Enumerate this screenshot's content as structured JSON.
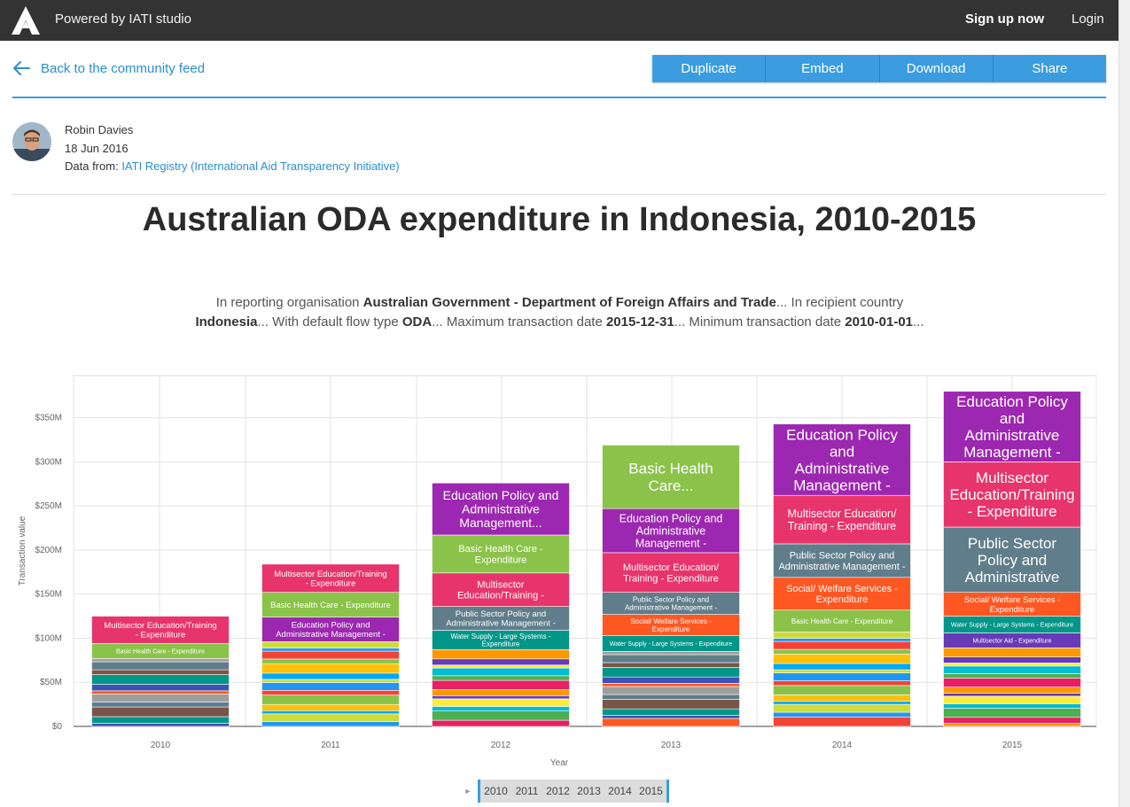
{
  "topbar": {
    "logo_icon": "atlas-a-logo-icon",
    "powered_by": "Powered by IATI studio",
    "signup": "Sign up now",
    "login": "Login"
  },
  "toolbar": {
    "back_label": "Back to the community feed",
    "duplicate": "Duplicate",
    "embed": "Embed",
    "download": "Download",
    "share": "Share",
    "accent": "#3b9de0"
  },
  "author": {
    "name": "Robin Davies",
    "date": "18 Jun 2016",
    "data_from_label": "Data from:",
    "data_source": "IATI Registry (International Aid Transparency Initiative)"
  },
  "title": "Australian ODA expenditure in Indonesia, 2010-2015",
  "description": {
    "p1": "In reporting organisation ",
    "b1": "Australian Government - Department of Foreign Affairs and Trade",
    "p2": "... In recipient country ",
    "b2": "Indonesia",
    "p3": "... With default flow type ",
    "b3": "ODA",
    "p4": "... Maximum transaction date ",
    "b4": "2015-12-31",
    "p5": "... Minimum transaction date ",
    "b5": "2010-01-01",
    "p6": "..."
  },
  "chart_data": {
    "type": "bar",
    "stacked": true,
    "xlabel": "Year",
    "ylabel": "Transaction value",
    "ylim": [
      0,
      380
    ],
    "y_ticks": [
      "$0",
      "$50M",
      "$100M",
      "$150M",
      "$200M",
      "$250M",
      "$300M",
      "$350M"
    ],
    "y_tick_values": [
      0,
      50,
      100,
      150,
      200,
      250,
      300,
      350
    ],
    "categories": [
      "2010",
      "2011",
      "2012",
      "2013",
      "2014",
      "2015"
    ],
    "grid": true,
    "labeled_segments": [
      {
        "year": "2010",
        "label": "Multisector Education/Training - Expenditure",
        "value": 31,
        "color": "#e8346c"
      },
      {
        "year": "2010",
        "label": "Basic Health Care - Expenditure",
        "value": 17,
        "color": "#8bc34a"
      },
      {
        "year": "2011",
        "label": "Multisector Education/Training - Expenditure",
        "value": 32,
        "color": "#e8346c"
      },
      {
        "year": "2011",
        "label": "Basic Health Care - Expenditure",
        "value": 28,
        "color": "#8bc34a"
      },
      {
        "year": "2011",
        "label": "Education Policy and Administrative Management - Expenditure",
        "value": 28,
        "color": "#9c27b0"
      },
      {
        "year": "2012",
        "label": "Education Policy and Administrative Management...",
        "value": 59,
        "color": "#9c27b0"
      },
      {
        "year": "2012",
        "label": "Basic Health Care - Expenditure",
        "value": 43,
        "color": "#8bc34a"
      },
      {
        "year": "2012",
        "label": "Multisector Education/Training - Expenditure",
        "value": 38,
        "color": "#e8346c"
      },
      {
        "year": "2012",
        "label": "Public Sector Policy and Administrative Management - Expenditure",
        "value": 27,
        "color": "#607d8b"
      },
      {
        "year": "2012",
        "label": "Water Supply - Large Systems - Expenditure",
        "value": 22,
        "color": "#009688"
      },
      {
        "year": "2013",
        "label": "Basic Health Care...",
        "value": 72,
        "color": "#8bc34a"
      },
      {
        "year": "2013",
        "label": "Education Policy and Administrative Management - Expenditure",
        "value": 50,
        "color": "#9c27b0"
      },
      {
        "year": "2013",
        "label": "Multisector Education/ Training - Expenditure",
        "value": 45,
        "color": "#e8346c"
      },
      {
        "year": "2013",
        "label": "Public Sector Policy and Administrative Management - Expenditure",
        "value": 25,
        "color": "#607d8b"
      },
      {
        "year": "2013",
        "label": "Social/ Welfare Services - Expenditure",
        "value": 24,
        "color": "#ff5722"
      },
      {
        "year": "2013",
        "label": "Water Supply - Large Systems - Expenditure",
        "value": 18,
        "color": "#009688"
      },
      {
        "year": "2014",
        "label": "Education Policy and Administrative Management - Expenditure",
        "value": 81,
        "color": "#9c27b0"
      },
      {
        "year": "2014",
        "label": "Multisector Education/ Training - Expenditure",
        "value": 55,
        "color": "#e8346c"
      },
      {
        "year": "2014",
        "label": "Public Sector Policy and Administrative Management - Expenditure",
        "value": 38,
        "color": "#607d8b"
      },
      {
        "year": "2014",
        "label": "Social/ Welfare Services - Expenditure",
        "value": 37,
        "color": "#ff5722"
      },
      {
        "year": "2014",
        "label": "Basic Health Care - Expenditure",
        "value": 25,
        "color": "#8bc34a"
      },
      {
        "year": "2015",
        "label": "Education Policy and Administrative Management - Expenditure",
        "value": 80,
        "color": "#9c27b0"
      },
      {
        "year": "2015",
        "label": "Multisector Education/Training - Expenditure",
        "value": 74,
        "color": "#e8346c"
      },
      {
        "year": "2015",
        "label": "Public Sector Policy and Administrative Management - Expenditure",
        "value": 74,
        "color": "#607d8b"
      },
      {
        "year": "2015",
        "label": "Social/ Welfare Services - Expenditure",
        "value": 27,
        "color": "#ff5722"
      },
      {
        "year": "2015",
        "label": "Water Supply - Large Systems - Expenditure",
        "value": 19,
        "color": "#009688"
      },
      {
        "year": "2015",
        "label": "Multisector Aid - Expenditure",
        "value": 17,
        "color": "#673ab7"
      }
    ],
    "unlabeled_remainder": [
      {
        "year": "2010",
        "value": 77
      },
      {
        "year": "2011",
        "value": 96
      },
      {
        "year": "2012",
        "value": 87
      },
      {
        "year": "2013",
        "value": 85
      },
      {
        "year": "2014",
        "value": 107
      },
      {
        "year": "2015",
        "value": 89
      }
    ]
  },
  "timeline": {
    "play_icon": "play-triangle-icon",
    "years": [
      "2010",
      "2011",
      "2012",
      "2013",
      "2014",
      "2015"
    ]
  }
}
